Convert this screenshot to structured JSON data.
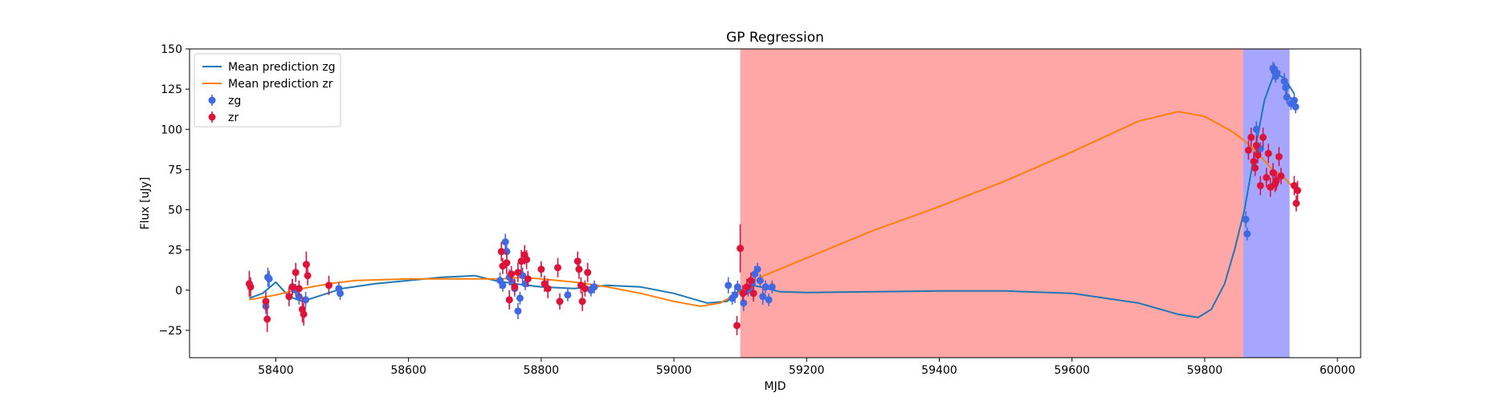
{
  "chart_data": {
    "type": "scatter",
    "title": "GP Regression",
    "xlabel": "MJD",
    "ylabel": "Flux [uJy]",
    "xlim": [
      58270,
      60035
    ],
    "ylim": [
      -42,
      150
    ],
    "xticks": [
      58400,
      58600,
      58800,
      59000,
      59200,
      59400,
      59600,
      59800,
      60000
    ],
    "yticks": [
      -25,
      0,
      25,
      50,
      75,
      100,
      125,
      150
    ],
    "grid": false,
    "legend_position": "upper-left",
    "colors": {
      "mean_zg": "#1f77b4",
      "mean_zr": "#ff7f0e",
      "obs_zg": "#4169e1",
      "obs_zr": "#dc143c",
      "span_red": "#ff0000",
      "span_blue": "#0000ff"
    },
    "shaded_regions": [
      {
        "x0": 59100,
        "x1": 59858,
        "color": "#ff0000",
        "alpha": 0.35
      },
      {
        "x0": 59858,
        "x1": 59928,
        "color": "#0000ff",
        "alpha": 0.35
      }
    ],
    "series": [
      {
        "name": "Mean prediction zg",
        "kind": "line",
        "color": "#1f77b4",
        "x": [
          58360,
          58380,
          58400,
          58420,
          58440,
          58470,
          58500,
          58550,
          58600,
          58650,
          58700,
          58730,
          58760,
          58800,
          58850,
          58900,
          58950,
          59000,
          59050,
          59080,
          59100,
          59120,
          59140,
          59160,
          59200,
          59300,
          59400,
          59500,
          59600,
          59700,
          59760,
          59790,
          59810,
          59830,
          59845,
          59860,
          59875,
          59890,
          59905,
          59920,
          59935
        ],
        "y": [
          -5,
          -2,
          5,
          -4,
          -7,
          -3,
          1,
          4,
          6,
          8,
          9,
          6,
          4,
          2,
          1,
          3,
          2,
          -2,
          -8,
          -7,
          0,
          3,
          1,
          -1,
          -1.5,
          -1,
          -0.5,
          -0.5,
          -2,
          -8,
          -15,
          -17,
          -12,
          4,
          25,
          50,
          85,
          118,
          135,
          132,
          122
        ]
      },
      {
        "name": "Mean prediction zr",
        "kind": "line",
        "color": "#ff7f0e",
        "x": [
          58360,
          58400,
          58440,
          58480,
          58520,
          58600,
          58650,
          58700,
          58740,
          58770,
          58800,
          58850,
          58900,
          58950,
          59000,
          59040,
          59070,
          59100,
          59130,
          59200,
          59300,
          59400,
          59500,
          59600,
          59700,
          59760,
          59800,
          59840,
          59860,
          59880,
          59900,
          59920,
          59935
        ],
        "y": [
          -6,
          -3,
          1,
          4,
          6,
          7,
          7,
          7,
          7,
          8,
          7,
          5,
          2,
          -2,
          -7,
          -10,
          -8,
          -1,
          8,
          20,
          37,
          52,
          68,
          86,
          105,
          111,
          108,
          99,
          93,
          85,
          76,
          70,
          63
        ]
      },
      {
        "name": "zg",
        "kind": "errorbar",
        "color": "#4169e1",
        "points": [
          [
            58385,
            -10,
            5
          ],
          [
            58388,
            8,
            6
          ],
          [
            58390,
            7,
            5
          ],
          [
            58425,
            2,
            5
          ],
          [
            58430,
            0,
            4
          ],
          [
            58435,
            -4,
            5
          ],
          [
            58445,
            -6,
            5
          ],
          [
            58495,
            1,
            4
          ],
          [
            58497,
            -2,
            4
          ],
          [
            58738,
            6,
            5
          ],
          [
            58742,
            3,
            4
          ],
          [
            58746,
            30,
            5
          ],
          [
            58748,
            24,
            4
          ],
          [
            58752,
            8,
            5
          ],
          [
            58756,
            5,
            4
          ],
          [
            58760,
            1,
            5
          ],
          [
            58765,
            -13,
            5
          ],
          [
            58768,
            -5,
            4
          ],
          [
            58772,
            9,
            5
          ],
          [
            58776,
            4,
            4
          ],
          [
            58840,
            -3,
            4
          ],
          [
            58875,
            0,
            4
          ],
          [
            58880,
            2,
            4
          ],
          [
            59082,
            3,
            5
          ],
          [
            59088,
            -5,
            4
          ],
          [
            59092,
            -3,
            5
          ],
          [
            59096,
            2,
            4
          ],
          [
            59105,
            -8,
            5
          ],
          [
            59112,
            0,
            4
          ],
          [
            59118,
            4,
            4
          ],
          [
            59122,
            10,
            5
          ],
          [
            59126,
            13,
            4
          ],
          [
            59130,
            6,
            4
          ],
          [
            59134,
            -4,
            5
          ],
          [
            59138,
            2,
            4
          ],
          [
            59143,
            -6,
            4
          ],
          [
            59148,
            2,
            4
          ],
          [
            59862,
            44,
            5
          ],
          [
            59864,
            35,
            4
          ],
          [
            59878,
            100,
            5
          ],
          [
            59884,
            88,
            4
          ],
          [
            59903,
            138,
            4
          ],
          [
            59905,
            136,
            5
          ],
          [
            59907,
            133,
            4
          ],
          [
            59909,
            135,
            4
          ],
          [
            59920,
            130,
            5
          ],
          [
            59922,
            126,
            4
          ],
          [
            59924,
            120,
            4
          ],
          [
            59930,
            116,
            4
          ],
          [
            59935,
            118,
            4
          ],
          [
            59937,
            114,
            4
          ]
        ]
      },
      {
        "name": "zr",
        "kind": "errorbar",
        "color": "#dc143c",
        "points": [
          [
            58360,
            4,
            8
          ],
          [
            58362,
            2,
            6
          ],
          [
            58385,
            -7,
            6
          ],
          [
            58387,
            -18,
            8
          ],
          [
            58420,
            -4,
            6
          ],
          [
            58425,
            2,
            5
          ],
          [
            58430,
            11,
            6
          ],
          [
            58435,
            1,
            5
          ],
          [
            58440,
            -12,
            8
          ],
          [
            58442,
            -15,
            7
          ],
          [
            58446,
            16,
            8
          ],
          [
            58448,
            9,
            6
          ],
          [
            58480,
            3,
            6
          ],
          [
            58740,
            24,
            6
          ],
          [
            58742,
            15,
            5
          ],
          [
            58748,
            17,
            7
          ],
          [
            58752,
            -6,
            6
          ],
          [
            58755,
            10,
            5
          ],
          [
            58760,
            2,
            5
          ],
          [
            58765,
            11,
            6
          ],
          [
            58770,
            18,
            7
          ],
          [
            58775,
            22,
            6
          ],
          [
            58778,
            19,
            6
          ],
          [
            58780,
            7,
            5
          ],
          [
            58800,
            13,
            5
          ],
          [
            58805,
            4,
            5
          ],
          [
            58810,
            1,
            6
          ],
          [
            58825,
            14,
            6
          ],
          [
            58828,
            -7,
            5
          ],
          [
            58855,
            18,
            6
          ],
          [
            58857,
            13,
            6
          ],
          [
            58860,
            3,
            5
          ],
          [
            58862,
            -7,
            6
          ],
          [
            58866,
            1,
            5
          ],
          [
            58870,
            11,
            6
          ],
          [
            59095,
            -22,
            6
          ],
          [
            59100,
            26,
            15
          ],
          [
            59104,
            -2,
            5
          ],
          [
            59110,
            2,
            5
          ],
          [
            59116,
            6,
            5
          ],
          [
            59120,
            -2,
            5
          ],
          [
            59866,
            87,
            6
          ],
          [
            59870,
            95,
            6
          ],
          [
            59874,
            80,
            6
          ],
          [
            59876,
            76,
            5
          ],
          [
            59878,
            90,
            6
          ],
          [
            59880,
            84,
            5
          ],
          [
            59884,
            65,
            6
          ],
          [
            59888,
            95,
            6
          ],
          [
            59893,
            70,
            6
          ],
          [
            59896,
            85,
            6
          ],
          [
            59899,
            64,
            6
          ],
          [
            59903,
            73,
            6
          ],
          [
            59906,
            66,
            5
          ],
          [
            59908,
            68,
            6
          ],
          [
            59912,
            83,
            6
          ],
          [
            59915,
            71,
            5
          ],
          [
            59935,
            65,
            6
          ],
          [
            59938,
            54,
            5
          ],
          [
            59940,
            62,
            6
          ]
        ]
      }
    ]
  }
}
